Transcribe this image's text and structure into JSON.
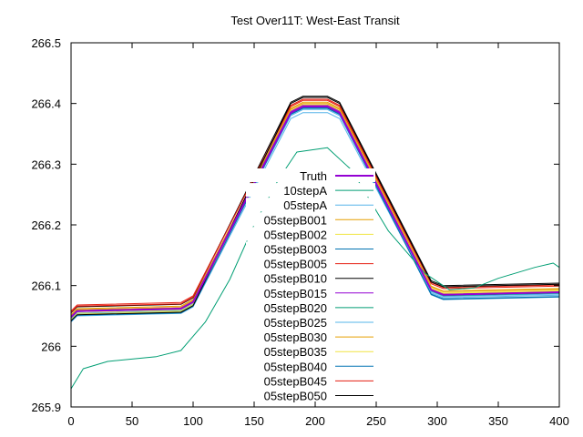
{
  "chart_data": {
    "type": "line",
    "title": "Test Over11T: West-East Transit",
    "xlabel": "",
    "ylabel": "",
    "xlim": [
      0,
      400
    ],
    "ylim": [
      265.9,
      266.5
    ],
    "xticks": [
      0,
      50,
      100,
      150,
      200,
      250,
      300,
      350,
      400
    ],
    "xtick_labels": [
      "0",
      "50",
      "100",
      "150",
      "200",
      "250",
      "300",
      "350",
      "400"
    ],
    "yticks": [
      265.9,
      266.0,
      266.1,
      266.2,
      266.3,
      266.4,
      266.5
    ],
    "ytick_labels": [
      "265.9",
      "266",
      "266.1",
      "266.2",
      "266.3",
      "266.4",
      "266.5"
    ],
    "grid": false,
    "legend_position": "center",
    "x": [
      0,
      5,
      90,
      100,
      180,
      190,
      210,
      220,
      295,
      305,
      400
    ],
    "series": [
      {
        "name": "Truth",
        "color": "#9400d3",
        "width": 2,
        "values": [
          266.048,
          266.058,
          266.062,
          266.073,
          266.385,
          266.395,
          266.395,
          266.385,
          266.093,
          266.085,
          266.089
        ]
      },
      {
        "name": "10stepA",
        "color": "#009e73",
        "width": 1,
        "x": [
          0,
          10,
          30,
          70,
          90,
          110,
          130,
          150,
          170,
          185,
          210,
          230,
          260,
          290,
          310,
          330,
          350,
          380,
          395,
          400
        ],
        "values": [
          265.93,
          265.963,
          265.975,
          265.983,
          265.993,
          266.04,
          266.11,
          266.2,
          266.275,
          266.32,
          266.327,
          266.29,
          266.19,
          266.12,
          266.093,
          266.096,
          266.112,
          266.13,
          266.137,
          266.13
        ]
      },
      {
        "name": "05stepA",
        "color": "#56b4e9",
        "width": 1,
        "values": [
          266.04,
          266.05,
          266.054,
          266.065,
          266.375,
          266.385,
          266.385,
          266.375,
          266.088,
          266.08,
          266.084
        ]
      },
      {
        "name": "05stepB001",
        "color": "#e69f00",
        "width": 1,
        "values": [
          266.052,
          266.062,
          266.066,
          266.077,
          266.39,
          266.4,
          266.4,
          266.39,
          266.098,
          266.09,
          266.094
        ]
      },
      {
        "name": "05stepB002",
        "color": "#f0e442",
        "width": 1,
        "values": [
          266.045,
          266.055,
          266.059,
          266.07,
          266.388,
          266.398,
          266.398,
          266.388,
          266.096,
          266.088,
          266.092
        ]
      },
      {
        "name": "05stepB003",
        "color": "#0072b2",
        "width": 1,
        "values": [
          266.042,
          266.052,
          266.056,
          266.067,
          266.382,
          266.392,
          266.392,
          266.382,
          266.086,
          266.078,
          266.082
        ]
      },
      {
        "name": "05stepB005",
        "color": "#e51e10",
        "width": 1,
        "values": [
          266.058,
          266.068,
          266.072,
          266.083,
          266.395,
          266.405,
          266.405,
          266.395,
          266.103,
          266.095,
          266.099
        ]
      },
      {
        "name": "05stepB010",
        "color": "#000000",
        "width": 1,
        "values": [
          266.055,
          266.065,
          266.069,
          266.08,
          266.402,
          266.412,
          266.412,
          266.402,
          266.108,
          266.1,
          266.104
        ]
      },
      {
        "name": "05stepB015",
        "color": "#9400d3",
        "width": 1,
        "values": [
          266.05,
          266.06,
          266.064,
          266.075,
          266.387,
          266.397,
          266.397,
          266.387,
          266.094,
          266.086,
          266.09
        ]
      },
      {
        "name": "05stepB020",
        "color": "#009e73",
        "width": 1,
        "values": [
          266.047,
          266.057,
          266.061,
          266.072,
          266.384,
          266.394,
          266.394,
          266.384,
          266.091,
          266.083,
          266.087
        ]
      },
      {
        "name": "05stepB025",
        "color": "#56b4e9",
        "width": 1,
        "values": [
          266.044,
          266.054,
          266.058,
          266.069,
          266.38,
          266.39,
          266.39,
          266.38,
          266.09,
          266.082,
          266.086
        ]
      },
      {
        "name": "05stepB030",
        "color": "#e69f00",
        "width": 1,
        "values": [
          266.05,
          266.06,
          266.064,
          266.075,
          266.392,
          266.402,
          266.402,
          266.392,
          266.099,
          266.091,
          266.095
        ]
      },
      {
        "name": "05stepB035",
        "color": "#f0e442",
        "width": 1,
        "values": [
          266.043,
          266.053,
          266.057,
          266.068,
          266.386,
          266.396,
          266.396,
          266.386,
          266.095,
          266.087,
          266.091
        ]
      },
      {
        "name": "05stepB040",
        "color": "#0072b2",
        "width": 1,
        "values": [
          266.041,
          266.051,
          266.055,
          266.066,
          266.383,
          266.393,
          266.393,
          266.383,
          266.085,
          266.077,
          266.081
        ]
      },
      {
        "name": "05stepB045",
        "color": "#e51e10",
        "width": 1,
        "values": [
          266.056,
          266.066,
          266.07,
          266.081,
          266.397,
          266.407,
          266.407,
          266.397,
          266.105,
          266.097,
          266.101
        ]
      },
      {
        "name": "05stepB050",
        "color": "#000000",
        "width": 1,
        "values": [
          266.042,
          266.052,
          266.056,
          266.067,
          266.4,
          266.41,
          266.41,
          266.4,
          266.106,
          266.098,
          266.102
        ]
      }
    ]
  }
}
